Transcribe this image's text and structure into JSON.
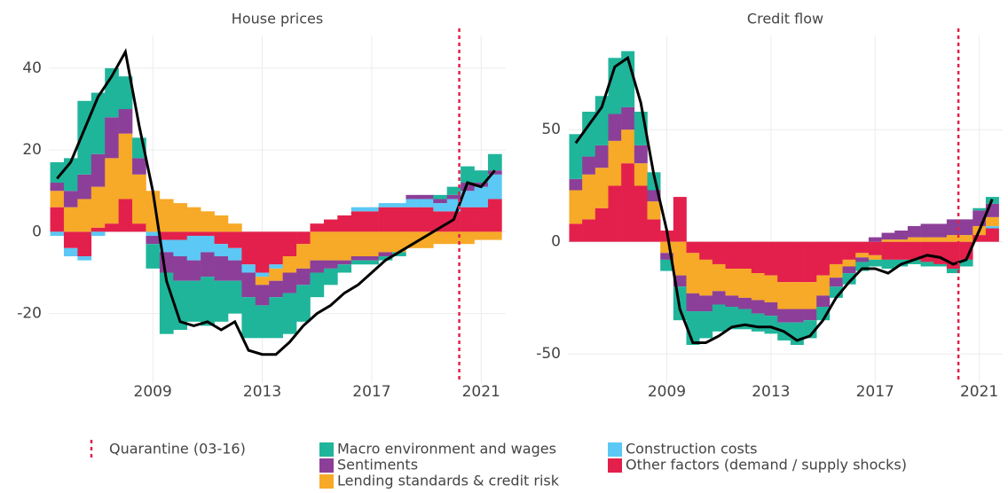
{
  "chart_data": [
    {
      "type": "bar",
      "title": "House prices",
      "x": [
        2005.5,
        2006,
        2006.5,
        2007,
        2007.5,
        2008,
        2008.5,
        2009,
        2009.5,
        2010,
        2010.5,
        2011,
        2011.5,
        2012,
        2012.5,
        2013,
        2013.5,
        2014,
        2014.5,
        2015,
        2015.5,
        2016,
        2016.5,
        2017,
        2017.5,
        2018,
        2018.5,
        2019,
        2019.5,
        2020,
        2020.5,
        2021,
        2021.5
      ],
      "xlim": [
        2005.2,
        2021.9
      ],
      "xticks": [
        2009,
        2013,
        2017,
        2021
      ],
      "ylim": [
        -37,
        48
      ],
      "yticks": [
        -20,
        0,
        20,
        40
      ],
      "grid": true,
      "series": [
        {
          "name": "Macro environment and wages",
          "color": "#1fb59b",
          "values": [
            5,
            8,
            18,
            15,
            12,
            8,
            5,
            -6,
            -15,
            -12,
            -10,
            -12,
            -10,
            -8,
            -10,
            -8,
            -10,
            -10,
            -9,
            -6,
            -4,
            -2,
            -1,
            -1,
            -1,
            -1,
            0,
            0,
            1,
            2,
            4,
            3,
            4
          ]
        },
        {
          "name": "Sentiments",
          "color": "#8c3f98",
          "values": [
            2,
            4,
            6,
            8,
            10,
            6,
            4,
            -2,
            -5,
            -6,
            -5,
            -6,
            -6,
            -5,
            -6,
            -5,
            -4,
            -5,
            -4,
            -3,
            -2,
            -1,
            -1,
            -1,
            -1,
            0,
            1,
            1,
            1,
            1,
            2,
            1,
            1
          ]
        },
        {
          "name": "Lending standards & credit risk",
          "color": "#f7a928",
          "values": [
            4,
            6,
            8,
            10,
            16,
            16,
            12,
            10,
            8,
            7,
            6,
            5,
            4,
            2,
            0,
            -2,
            -3,
            -4,
            -6,
            -7,
            -7,
            -7,
            -6,
            -6,
            -5,
            -5,
            -4,
            -4,
            -3,
            -3,
            -3,
            -2,
            -2
          ]
        },
        {
          "name": "Construction costs",
          "color": "#5bc8f5",
          "values": [
            -1,
            -2,
            -1,
            -1,
            0,
            0,
            0,
            -1,
            -3,
            -4,
            -6,
            -4,
            -3,
            -3,
            -2,
            -1,
            -1,
            0,
            0,
            0,
            0,
            0,
            1,
            1,
            1,
            1,
            2,
            2,
            2,
            3,
            4,
            5,
            6
          ]
        },
        {
          "name": "Other factors (demand / supply shocks)",
          "color": "#e3204b",
          "values": [
            6,
            -4,
            -6,
            1,
            2,
            8,
            2,
            0,
            -2,
            -2,
            -1,
            -1,
            -3,
            -4,
            -8,
            -10,
            -8,
            -6,
            -3,
            2,
            3,
            4,
            5,
            5,
            6,
            6,
            6,
            6,
            5,
            5,
            6,
            6,
            8
          ]
        }
      ],
      "line": {
        "color": "#000000",
        "values": [
          13,
          17,
          25,
          33,
          38,
          44,
          26,
          10,
          -12,
          -22,
          -23,
          -22,
          -24,
          -22,
          -29,
          -30,
          -30,
          -27,
          -23,
          -20,
          -18,
          -15,
          -13,
          -10,
          -7,
          -5,
          -3,
          -1,
          1,
          3,
          12,
          11,
          15
        ]
      },
      "vline": {
        "x": 2020.2,
        "label": "Quarantine (03-16)",
        "color": "#e3204b"
      }
    },
    {
      "type": "bar",
      "title": "Credit flow",
      "x": [
        2005.5,
        2006,
        2006.5,
        2007,
        2007.5,
        2008,
        2008.5,
        2009,
        2009.5,
        2010,
        2010.5,
        2011,
        2011.5,
        2012,
        2012.5,
        2013,
        2013.5,
        2014,
        2014.5,
        2015,
        2015.5,
        2016,
        2016.5,
        2017,
        2017.5,
        2018,
        2018.5,
        2019,
        2019.5,
        2020,
        2020.5,
        2021,
        2021.5
      ],
      "xlim": [
        2005.2,
        2021.9
      ],
      "xticks": [
        2009,
        2013,
        2017,
        2021
      ],
      "ylim": [
        -63,
        92
      ],
      "yticks": [
        -50,
        0,
        50
      ],
      "grid": true,
      "series": [
        {
          "color": "#1fb59b",
          "values": [
            20,
            20,
            22,
            25,
            25,
            15,
            8,
            -5,
            -15,
            -15,
            -12,
            -12,
            -10,
            -9,
            -8,
            -8,
            -8,
            -10,
            -8,
            -6,
            -5,
            -5,
            -4,
            -3,
            -4,
            -3,
            -2,
            -2,
            -1,
            -2,
            -3,
            1,
            3
          ]
        },
        {
          "color": "#8c3f98",
          "values": [
            5,
            8,
            10,
            12,
            10,
            8,
            5,
            -3,
            -5,
            -8,
            -7,
            -6,
            -5,
            -5,
            -6,
            -6,
            -6,
            -6,
            -5,
            -5,
            -4,
            -3,
            -2,
            2,
            3,
            4,
            5,
            6,
            6,
            7,
            7,
            7,
            6
          ]
        },
        {
          "color": "#f7a928",
          "values": [
            15,
            20,
            18,
            20,
            15,
            10,
            8,
            -5,
            -15,
            -18,
            -16,
            -12,
            -12,
            -13,
            -12,
            -12,
            -12,
            -12,
            -12,
            -9,
            -6,
            -3,
            -2,
            -2,
            1,
            1,
            2,
            2,
            2,
            3,
            3,
            4,
            4
          ]
        },
        {
          "color": "#5bc8f5",
          "values": [
            0,
            0,
            0,
            0,
            0,
            0,
            0,
            0,
            0,
            0,
            0,
            0,
            0,
            0,
            0,
            0,
            0,
            0,
            0,
            0,
            0,
            0,
            0,
            0,
            0,
            0,
            0,
            0,
            0,
            0,
            0,
            0,
            1
          ]
        },
        {
          "color": "#e3204b",
          "values": [
            8,
            10,
            15,
            25,
            35,
            25,
            10,
            5,
            20,
            -5,
            -8,
            -10,
            -12,
            -12,
            -14,
            -15,
            -18,
            -18,
            -18,
            -15,
            -10,
            -8,
            -5,
            -6,
            -8,
            -8,
            -8,
            -9,
            -10,
            -12,
            -8,
            3,
            6
          ]
        }
      ],
      "line": {
        "color": "#000000",
        "values": [
          44,
          52,
          60,
          78,
          82,
          62,
          30,
          5,
          -30,
          -45,
          -45,
          -42,
          -38,
          -37,
          -38,
          -38,
          -40,
          -44,
          -42,
          -35,
          -25,
          -18,
          -12,
          -12,
          -14,
          -10,
          -8,
          -6,
          -7,
          -10,
          -8,
          5,
          19
        ]
      },
      "vline": {
        "x": 2020.2,
        "color": "#e3204b"
      }
    }
  ]
}
